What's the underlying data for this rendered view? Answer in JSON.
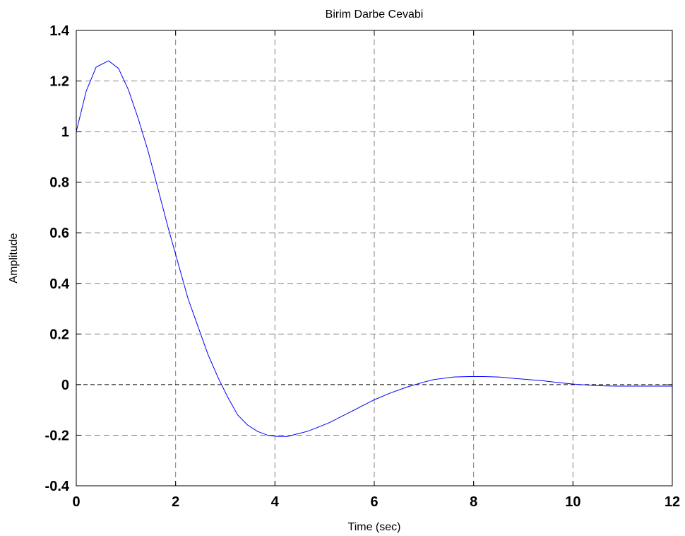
{
  "chart_data": {
    "type": "line",
    "title": "Birim Darbe Cevabi",
    "xlabel": "Time (sec)",
    "ylabel": "Amplitude",
    "xlim": [
      0,
      12
    ],
    "ylim": [
      -0.4,
      1.4
    ],
    "x_ticks": [
      "0",
      "2",
      "4",
      "6",
      "8",
      "10",
      "12"
    ],
    "y_ticks": [
      "1.4",
      "1.2",
      "1",
      "0.8",
      "0.6",
      "0.4",
      "0.2",
      "0",
      "-0.2",
      "-0.4"
    ],
    "grid": true,
    "reference_line": 0,
    "colors": {
      "series": "#0000ff",
      "grid": "#808080",
      "axes": "#000000"
    },
    "series": [
      {
        "x": [
          0,
          0.2,
          0.4,
          0.65,
          0.85,
          1.05,
          1.25,
          1.45,
          1.65,
          1.85,
          2.05,
          2.25,
          2.45,
          2.65,
          2.85,
          3.05,
          3.25,
          3.45,
          3.65,
          3.85,
          4.05,
          4.25,
          4.45,
          4.65,
          4.85,
          5.1,
          5.4,
          5.7,
          6.0,
          6.3,
          6.65,
          7.0,
          7.2,
          7.4,
          7.6,
          7.9,
          8.2,
          8.5,
          8.8,
          9.1,
          9.4,
          9.7,
          10.0,
          10.3,
          10.6,
          10.9,
          11.2,
          11.5,
          11.8,
          12.0
        ],
        "y": [
          1.0,
          1.16,
          1.255,
          1.28,
          1.25,
          1.165,
          1.05,
          0.92,
          0.77,
          0.62,
          0.48,
          0.34,
          0.23,
          0.12,
          0.03,
          -0.05,
          -0.12,
          -0.16,
          -0.185,
          -0.2,
          -0.205,
          -0.205,
          -0.195,
          -0.185,
          -0.17,
          -0.15,
          -0.12,
          -0.09,
          -0.06,
          -0.035,
          -0.01,
          0.01,
          0.02,
          0.025,
          0.03,
          0.032,
          0.032,
          0.03,
          0.025,
          0.02,
          0.015,
          0.008,
          0.002,
          -0.002,
          -0.005,
          -0.006,
          -0.006,
          -0.006,
          -0.006,
          -0.006
        ]
      }
    ]
  }
}
